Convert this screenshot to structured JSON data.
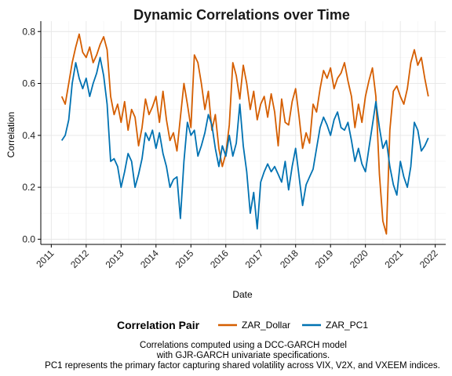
{
  "chart_data": {
    "type": "line",
    "title": "Dynamic Correlations over Time",
    "xlabel": "Date",
    "ylabel": "Correlation",
    "xlim": [
      2010.7,
      2022.3
    ],
    "ylim": [
      -0.02,
      0.84
    ],
    "x_ticks": [
      2011,
      2012,
      2013,
      2014,
      2015,
      2016,
      2017,
      2018,
      2019,
      2020,
      2021,
      2022
    ],
    "x_tick_labels": [
      "2011",
      "2012",
      "2013",
      "2014",
      "2015",
      "2016",
      "2017",
      "2018",
      "2019",
      "2020",
      "2021",
      "2022"
    ],
    "y_ticks": [
      0.0,
      0.2,
      0.4,
      0.6,
      0.8
    ],
    "y_tick_labels": [
      "0.0",
      "0.2",
      "0.4",
      "0.6",
      "0.8"
    ],
    "grid": true,
    "legend": {
      "title": "Correlation Pair",
      "position": "bottom"
    },
    "series": [
      {
        "name": "ZAR_Dollar",
        "color": "#D55E00",
        "x": [
          2011.3,
          2011.4,
          2011.5,
          2011.6,
          2011.7,
          2011.8,
          2011.9,
          2012.0,
          2012.1,
          2012.2,
          2012.3,
          2012.4,
          2012.5,
          2012.6,
          2012.7,
          2012.8,
          2012.9,
          2013.0,
          2013.1,
          2013.2,
          2013.3,
          2013.4,
          2013.5,
          2013.6,
          2013.7,
          2013.8,
          2013.9,
          2014.0,
          2014.1,
          2014.2,
          2014.3,
          2014.4,
          2014.5,
          2014.6,
          2014.7,
          2014.8,
          2014.9,
          2015.0,
          2015.1,
          2015.2,
          2015.3,
          2015.4,
          2015.5,
          2015.6,
          2015.7,
          2015.8,
          2015.9,
          2016.0,
          2016.1,
          2016.2,
          2016.3,
          2016.4,
          2016.5,
          2016.6,
          2016.7,
          2016.8,
          2016.9,
          2017.0,
          2017.1,
          2017.2,
          2017.3,
          2017.4,
          2017.5,
          2017.6,
          2017.7,
          2017.8,
          2017.9,
          2018.0,
          2018.1,
          2018.2,
          2018.3,
          2018.4,
          2018.5,
          2018.6,
          2018.7,
          2018.8,
          2018.9,
          2019.0,
          2019.1,
          2019.2,
          2019.3,
          2019.4,
          2019.5,
          2019.6,
          2019.7,
          2019.8,
          2019.9,
          2020.0,
          2020.1,
          2020.2,
          2020.3,
          2020.4,
          2020.5,
          2020.6,
          2020.7,
          2020.8,
          2020.9,
          2021.0,
          2021.1,
          2021.2,
          2021.3,
          2021.4,
          2021.5,
          2021.6,
          2021.7,
          2021.8
        ],
        "y": [
          0.55,
          0.52,
          0.6,
          0.68,
          0.74,
          0.79,
          0.72,
          0.7,
          0.74,
          0.68,
          0.71,
          0.75,
          0.78,
          0.73,
          0.55,
          0.48,
          0.52,
          0.45,
          0.53,
          0.42,
          0.5,
          0.47,
          0.36,
          0.43,
          0.54,
          0.48,
          0.51,
          0.55,
          0.45,
          0.57,
          0.46,
          0.38,
          0.41,
          0.34,
          0.47,
          0.6,
          0.52,
          0.43,
          0.71,
          0.68,
          0.6,
          0.5,
          0.57,
          0.42,
          0.48,
          0.35,
          0.28,
          0.33,
          0.44,
          0.68,
          0.63,
          0.54,
          0.67,
          0.6,
          0.5,
          0.57,
          0.46,
          0.52,
          0.55,
          0.47,
          0.56,
          0.49,
          0.36,
          0.54,
          0.45,
          0.44,
          0.53,
          0.58,
          0.47,
          0.35,
          0.41,
          0.37,
          0.52,
          0.49,
          0.58,
          0.65,
          0.62,
          0.66,
          0.58,
          0.62,
          0.64,
          0.68,
          0.61,
          0.55,
          0.43,
          0.52,
          0.45,
          0.55,
          0.61,
          0.66,
          0.55,
          0.25,
          0.07,
          0.02,
          0.42,
          0.57,
          0.59,
          0.55,
          0.52,
          0.58,
          0.68,
          0.73,
          0.67,
          0.7,
          0.62,
          0.55
        ]
      },
      {
        "name": "ZAR_PC1",
        "color": "#0072B2",
        "x": [
          2011.3,
          2011.4,
          2011.5,
          2011.6,
          2011.7,
          2011.8,
          2011.9,
          2012.0,
          2012.1,
          2012.2,
          2012.3,
          2012.4,
          2012.5,
          2012.6,
          2012.7,
          2012.8,
          2012.9,
          2013.0,
          2013.1,
          2013.2,
          2013.3,
          2013.4,
          2013.5,
          2013.6,
          2013.7,
          2013.8,
          2013.9,
          2014.0,
          2014.1,
          2014.2,
          2014.3,
          2014.4,
          2014.5,
          2014.6,
          2014.7,
          2014.8,
          2014.9,
          2015.0,
          2015.1,
          2015.2,
          2015.3,
          2015.4,
          2015.5,
          2015.6,
          2015.7,
          2015.8,
          2015.9,
          2016.0,
          2016.1,
          2016.2,
          2016.3,
          2016.4,
          2016.5,
          2016.6,
          2016.7,
          2016.8,
          2016.9,
          2017.0,
          2017.1,
          2017.2,
          2017.3,
          2017.4,
          2017.5,
          2017.6,
          2017.7,
          2017.8,
          2017.9,
          2018.0,
          2018.1,
          2018.2,
          2018.3,
          2018.4,
          2018.5,
          2018.6,
          2018.7,
          2018.8,
          2018.9,
          2019.0,
          2019.1,
          2019.2,
          2019.3,
          2019.4,
          2019.5,
          2019.6,
          2019.7,
          2019.8,
          2019.9,
          2020.0,
          2020.1,
          2020.2,
          2020.3,
          2020.4,
          2020.5,
          2020.6,
          2020.7,
          2020.8,
          2020.9,
          2021.0,
          2021.1,
          2021.2,
          2021.3,
          2021.4,
          2021.5,
          2021.6,
          2021.7,
          2021.8
        ],
        "y": [
          0.38,
          0.4,
          0.46,
          0.6,
          0.68,
          0.62,
          0.58,
          0.62,
          0.55,
          0.6,
          0.64,
          0.7,
          0.63,
          0.52,
          0.3,
          0.31,
          0.28,
          0.2,
          0.26,
          0.33,
          0.3,
          0.2,
          0.25,
          0.31,
          0.41,
          0.38,
          0.42,
          0.35,
          0.41,
          0.33,
          0.28,
          0.2,
          0.23,
          0.24,
          0.08,
          0.3,
          0.45,
          0.4,
          0.42,
          0.32,
          0.36,
          0.41,
          0.48,
          0.44,
          0.35,
          0.28,
          0.36,
          0.32,
          0.4,
          0.32,
          0.37,
          0.52,
          0.36,
          0.26,
          0.1,
          0.18,
          0.04,
          0.22,
          0.26,
          0.29,
          0.26,
          0.28,
          0.25,
          0.22,
          0.3,
          0.19,
          0.28,
          0.35,
          0.24,
          0.13,
          0.21,
          0.24,
          0.27,
          0.35,
          0.43,
          0.47,
          0.44,
          0.4,
          0.46,
          0.49,
          0.43,
          0.42,
          0.45,
          0.38,
          0.3,
          0.35,
          0.29,
          0.26,
          0.35,
          0.44,
          0.53,
          0.43,
          0.35,
          0.38,
          0.28,
          0.21,
          0.17,
          0.3,
          0.24,
          0.2,
          0.28,
          0.45,
          0.42,
          0.34,
          0.36,
          0.39
        ]
      }
    ],
    "caption": [
      "Correlations computed using a DCC-GARCH model",
      "with GJR-GARCH univariate specifications.",
      "PC1 represents the primary factor capturing shared volatility across VIX, V2X, and VXEEM indices."
    ]
  }
}
